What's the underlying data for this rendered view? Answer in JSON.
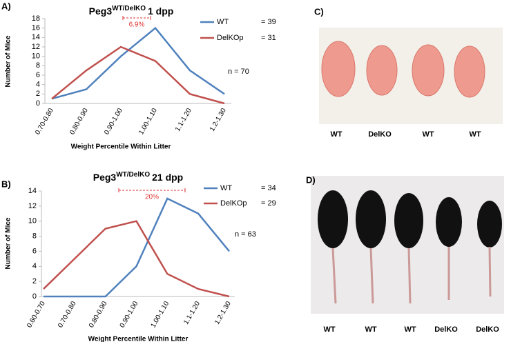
{
  "chart_data": [
    {
      "type": "line",
      "panel_label": "A)",
      "title": "Peg3",
      "title_superscript": "WT/DelKO",
      "title_suffix": "1 dpp",
      "y_label": "Number of Mice",
      "x_label": "Weight Percentile Within Litter",
      "categories": [
        "0.70-0.80",
        "0.80-0.90",
        "0.90-1.00",
        "1.00-1.10",
        "1.1-1.20",
        "1.2-1.30"
      ],
      "series": [
        {
          "name": "WT",
          "n_label": "= 39",
          "color": "#4f81bd",
          "values": [
            1,
            3,
            10,
            16,
            7,
            2
          ]
        },
        {
          "name": "DelKOp",
          "n_label": "= 31",
          "color": "#c0504d",
          "values": [
            1,
            7,
            12,
            9,
            2,
            0
          ]
        }
      ],
      "ylim": [
        0,
        18
      ],
      "yticks": [
        0,
        2,
        4,
        6,
        8,
        10,
        12,
        14,
        16,
        18
      ],
      "n_label": "n = 70",
      "bracket_label": "6.9%"
    },
    {
      "type": "line",
      "panel_label": "B)",
      "title": "Peg3",
      "title_superscript": "WT/DelKO",
      "title_suffix": "21 dpp",
      "y_label": "Number of Mice",
      "x_label": "Weight Percentile Within Litter",
      "categories": [
        "0.60-0.70",
        "0.70-0.80",
        "0.80-0.90",
        "0.90-1.00",
        "1.00-1.10",
        "1.1-1.20",
        "1.2-1.30"
      ],
      "series": [
        {
          "name": "WT",
          "n_label": "= 34",
          "color": "#4f81bd",
          "values": [
            0,
            0,
            0,
            4,
            13,
            11,
            6
          ]
        },
        {
          "name": "DelKOp",
          "n_label": "= 29",
          "color": "#c0504d",
          "values": [
            1,
            5,
            9,
            10,
            3,
            1,
            0
          ]
        }
      ],
      "ylim": [
        0,
        14
      ],
      "yticks": [
        0,
        2,
        4,
        6,
        8,
        10,
        12,
        14
      ],
      "n_label": "n = 63",
      "bracket_label": "20%"
    }
  ],
  "photos": [
    {
      "panel_label": "C)",
      "captions": [
        "WT",
        "DelKO",
        "WT",
        "WT"
      ]
    },
    {
      "panel_label": "D)",
      "captions": [
        "WT",
        "WT",
        "WT",
        "DelKO",
        "DelKO"
      ]
    }
  ]
}
